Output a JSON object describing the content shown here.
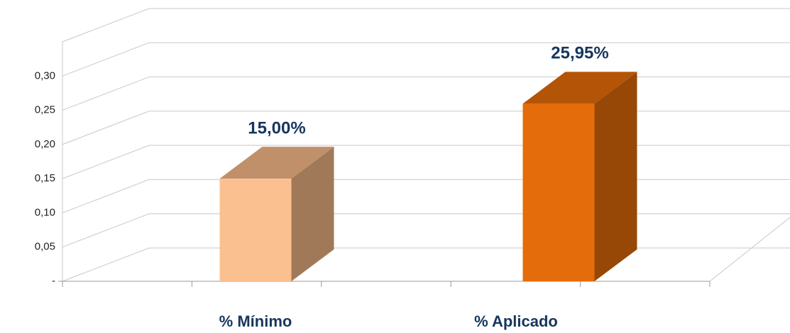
{
  "chart_data": {
    "type": "bar3d",
    "categories": [
      "% Mínimo",
      "% Aplicado"
    ],
    "values": [
      0.15,
      0.2595
    ],
    "value_labels": [
      "15,00%",
      "25,95%"
    ],
    "colors": [
      {
        "front": "#fbc08f",
        "side": "#a07a58",
        "top": "#c0906a"
      },
      {
        "front": "#e46c0a",
        "side": "#974806",
        "top": "#b35406"
      }
    ],
    "ylim": [
      0,
      0.35
    ],
    "yticks": [
      {
        "value": 0,
        "label": "-"
      },
      {
        "value": 0.05,
        "label": "0,05"
      },
      {
        "value": 0.1,
        "label": "0,10"
      },
      {
        "value": 0.15,
        "label": "0,15"
      },
      {
        "value": 0.2,
        "label": "0,20"
      },
      {
        "value": 0.25,
        "label": "0,25"
      },
      {
        "value": 0.3,
        "label": "0,30"
      }
    ],
    "grid": true
  }
}
